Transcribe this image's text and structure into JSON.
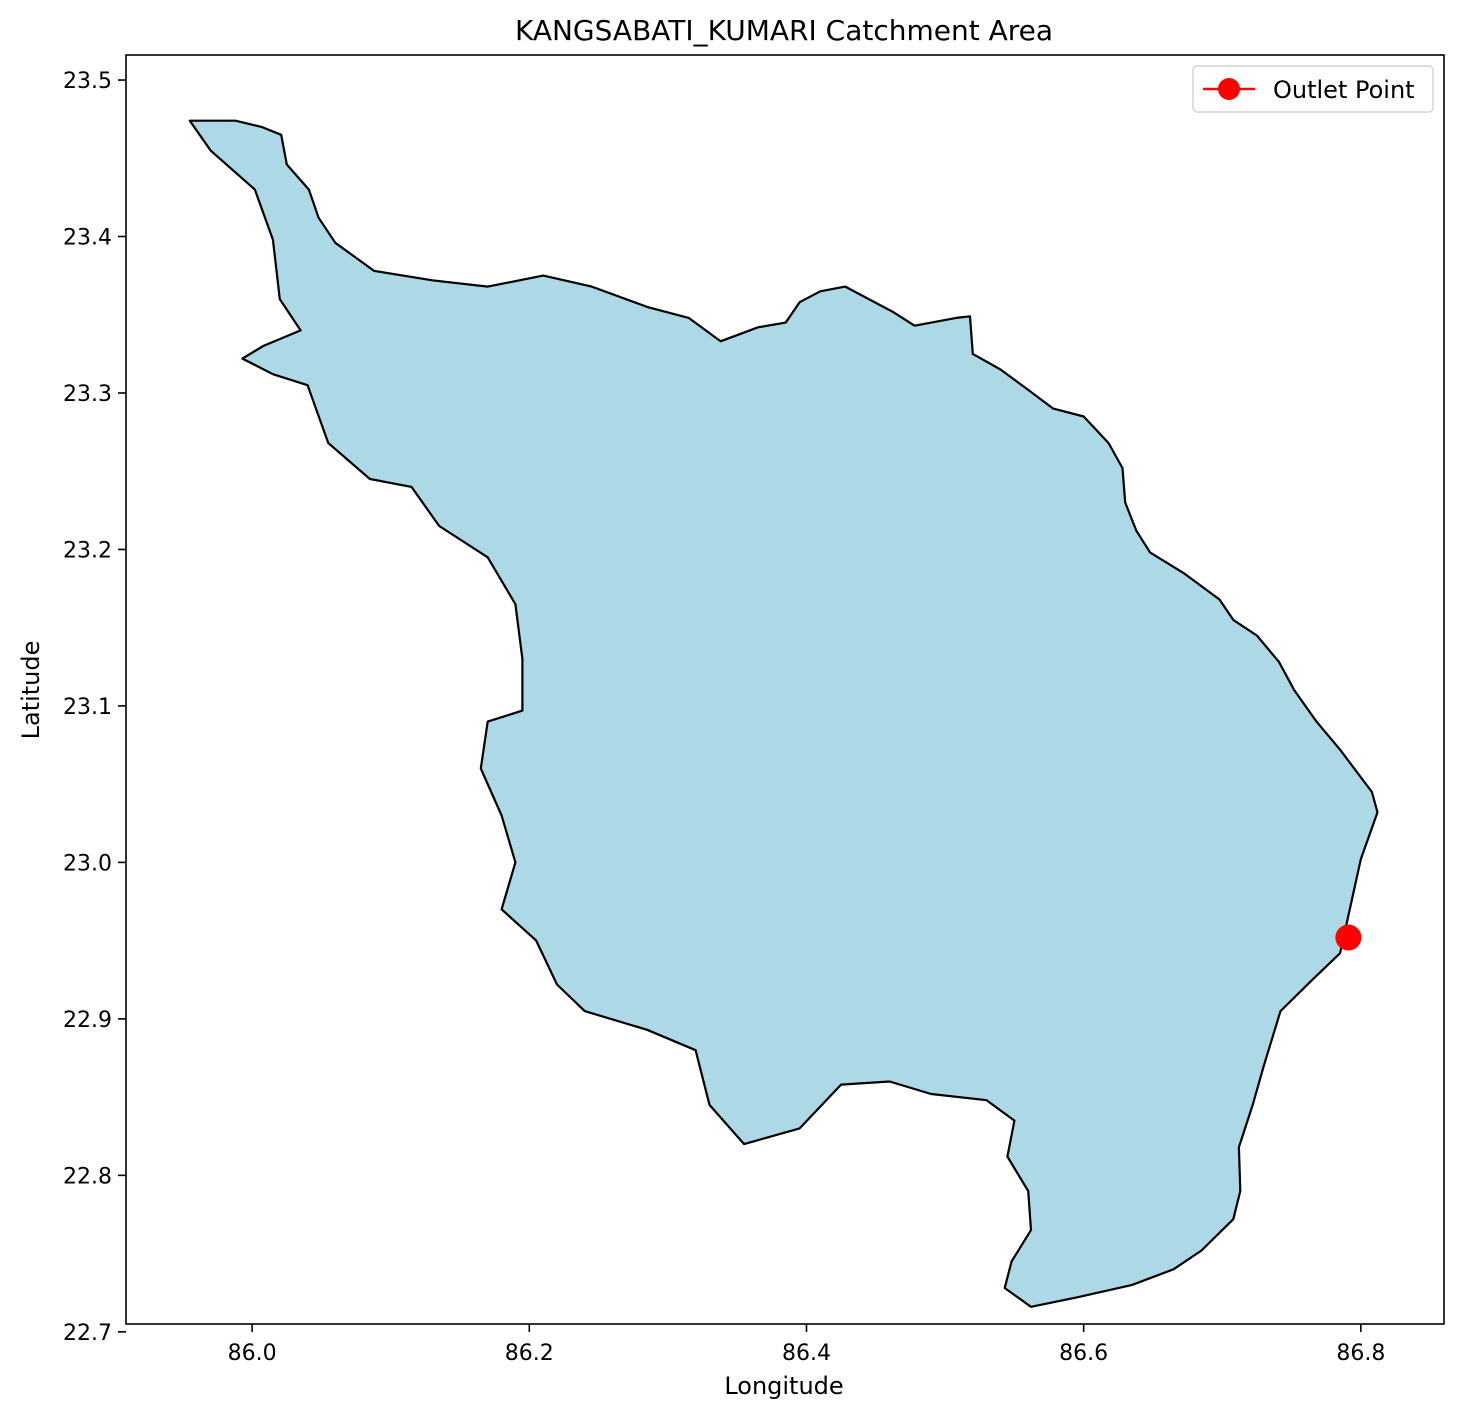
{
  "chart_data": {
    "type": "map",
    "title": "KANGSABATI_KUMARI Catchment Area",
    "xlabel": "Longitude",
    "ylabel": "Latitude",
    "xlim": [
      85.909,
      86.86
    ],
    "ylim": [
      22.705,
      23.516
    ],
    "xticks": [
      86.0,
      86.2,
      86.4,
      86.6,
      86.8
    ],
    "xtick_labels": [
      "86.0",
      "86.2",
      "86.4",
      "86.6",
      "86.8"
    ],
    "yticks": [
      22.7,
      22.8,
      22.9,
      23.0,
      23.1,
      23.2,
      23.3,
      23.4,
      23.5
    ],
    "ytick_labels": [
      "22.7",
      "22.8",
      "22.9",
      "23.0",
      "23.1",
      "23.2",
      "23.3",
      "23.4",
      "23.5"
    ],
    "grid": false,
    "legend": {
      "placement": "upper right",
      "entries": [
        "Outlet Point"
      ]
    },
    "catchment": {
      "fill": "#add8e6",
      "edge": "#000000",
      "boundary": [
        [
          85.955,
          23.474
        ],
        [
          85.988,
          23.474
        ],
        [
          86.007,
          23.47
        ],
        [
          86.021,
          23.465
        ],
        [
          86.025,
          23.446
        ],
        [
          86.041,
          23.43
        ],
        [
          86.048,
          23.412
        ],
        [
          86.06,
          23.396
        ],
        [
          86.088,
          23.378
        ],
        [
          86.13,
          23.372
        ],
        [
          86.17,
          23.368
        ],
        [
          86.21,
          23.375
        ],
        [
          86.245,
          23.368
        ],
        [
          86.285,
          23.355
        ],
        [
          86.315,
          23.348
        ],
        [
          86.338,
          23.333
        ],
        [
          86.365,
          23.342
        ],
        [
          86.385,
          23.345
        ],
        [
          86.395,
          23.358
        ],
        [
          86.41,
          23.365
        ],
        [
          86.428,
          23.368
        ],
        [
          86.445,
          23.36
        ],
        [
          86.462,
          23.352
        ],
        [
          86.478,
          23.343
        ],
        [
          86.508,
          23.348
        ],
        [
          86.518,
          23.349
        ],
        [
          86.52,
          23.325
        ],
        [
          86.54,
          23.315
        ],
        [
          86.56,
          23.302
        ],
        [
          86.578,
          23.29
        ],
        [
          86.6,
          23.285
        ],
        [
          86.618,
          23.268
        ],
        [
          86.628,
          23.252
        ],
        [
          86.63,
          23.23
        ],
        [
          86.638,
          23.212
        ],
        [
          86.648,
          23.198
        ],
        [
          86.672,
          23.185
        ],
        [
          86.698,
          23.168
        ],
        [
          86.708,
          23.155
        ],
        [
          86.725,
          23.145
        ],
        [
          86.741,
          23.128
        ],
        [
          86.752,
          23.11
        ],
        [
          86.768,
          23.09
        ],
        [
          86.785,
          23.072
        ],
        [
          86.808,
          23.045
        ],
        [
          86.812,
          23.032
        ],
        [
          86.8,
          23.002
        ],
        [
          86.795,
          22.982
        ],
        [
          86.79,
          22.962
        ],
        [
          86.785,
          22.942
        ],
        [
          86.765,
          22.925
        ],
        [
          86.742,
          22.905
        ],
        [
          86.73,
          22.87
        ],
        [
          86.722,
          22.845
        ],
        [
          86.712,
          22.818
        ],
        [
          86.713,
          22.79
        ],
        [
          86.708,
          22.772
        ],
        [
          86.685,
          22.752
        ],
        [
          86.665,
          22.74
        ],
        [
          86.635,
          22.73
        ],
        [
          86.595,
          22.722
        ],
        [
          86.562,
          22.716
        ],
        [
          86.543,
          22.728
        ],
        [
          86.548,
          22.745
        ],
        [
          86.562,
          22.765
        ],
        [
          86.56,
          22.79
        ],
        [
          86.545,
          22.812
        ],
        [
          86.55,
          22.835
        ],
        [
          86.53,
          22.848
        ],
        [
          86.49,
          22.852
        ],
        [
          86.46,
          22.86
        ],
        [
          86.425,
          22.858
        ],
        [
          86.395,
          22.83
        ],
        [
          86.355,
          22.82
        ],
        [
          86.33,
          22.845
        ],
        [
          86.32,
          22.88
        ],
        [
          86.285,
          22.893
        ],
        [
          86.24,
          22.905
        ],
        [
          86.22,
          22.922
        ],
        [
          86.205,
          22.95
        ],
        [
          86.18,
          22.97
        ],
        [
          86.19,
          23.0
        ],
        [
          86.18,
          23.03
        ],
        [
          86.165,
          23.06
        ],
        [
          86.17,
          23.09
        ],
        [
          86.195,
          23.097
        ],
        [
          86.195,
          23.13
        ],
        [
          86.19,
          23.165
        ],
        [
          86.17,
          23.195
        ],
        [
          86.135,
          23.215
        ],
        [
          86.115,
          23.24
        ],
        [
          86.085,
          23.245
        ],
        [
          86.055,
          23.268
        ],
        [
          86.04,
          23.305
        ],
        [
          86.015,
          23.312
        ],
        [
          85.993,
          23.322
        ],
        [
          86.008,
          23.33
        ],
        [
          86.035,
          23.34
        ],
        [
          86.02,
          23.36
        ],
        [
          86.015,
          23.398
        ],
        [
          86.002,
          23.43
        ],
        [
          85.97,
          23.455
        ]
      ]
    },
    "outlet_point": {
      "label": "Outlet Point",
      "lon": 86.791,
      "lat": 22.952,
      "color": "#ff0000"
    }
  }
}
